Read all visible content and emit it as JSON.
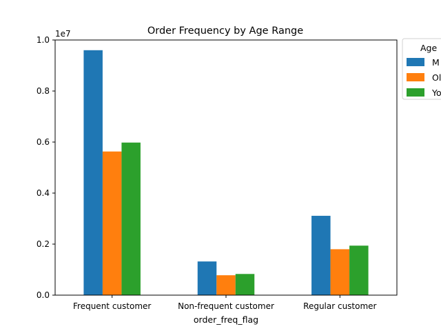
{
  "chart_data": {
    "type": "bar",
    "title": "Order Frequency by Age Range",
    "xlabel": "order_freq_flag",
    "ylabel": "",
    "y_scale_label": "1e7",
    "ylim": [
      0,
      1.0
    ],
    "yticks": [
      0.0,
      0.2,
      0.4,
      0.6,
      0.8,
      1.0
    ],
    "ytick_labels": [
      "0.0",
      "0.2",
      "0.4",
      "0.6",
      "0.8",
      "1.0"
    ],
    "categories": [
      "Frequent customer",
      "Non-frequent customer",
      "Regular customer"
    ],
    "legend": {
      "title": "Age",
      "placement": "outside-top-right",
      "entries": [
        "M",
        "Ol",
        "Yo"
      ]
    },
    "series": [
      {
        "name": "M",
        "color": "#1f77b4",
        "values": [
          0.96,
          0.132,
          0.311
        ]
      },
      {
        "name": "Ol",
        "color": "#ff7f0e",
        "values": [
          0.563,
          0.078,
          0.18
        ]
      },
      {
        "name": "Yo",
        "color": "#2ca02c",
        "values": [
          0.598,
          0.083,
          0.194
        ]
      }
    ],
    "grid": false
  }
}
